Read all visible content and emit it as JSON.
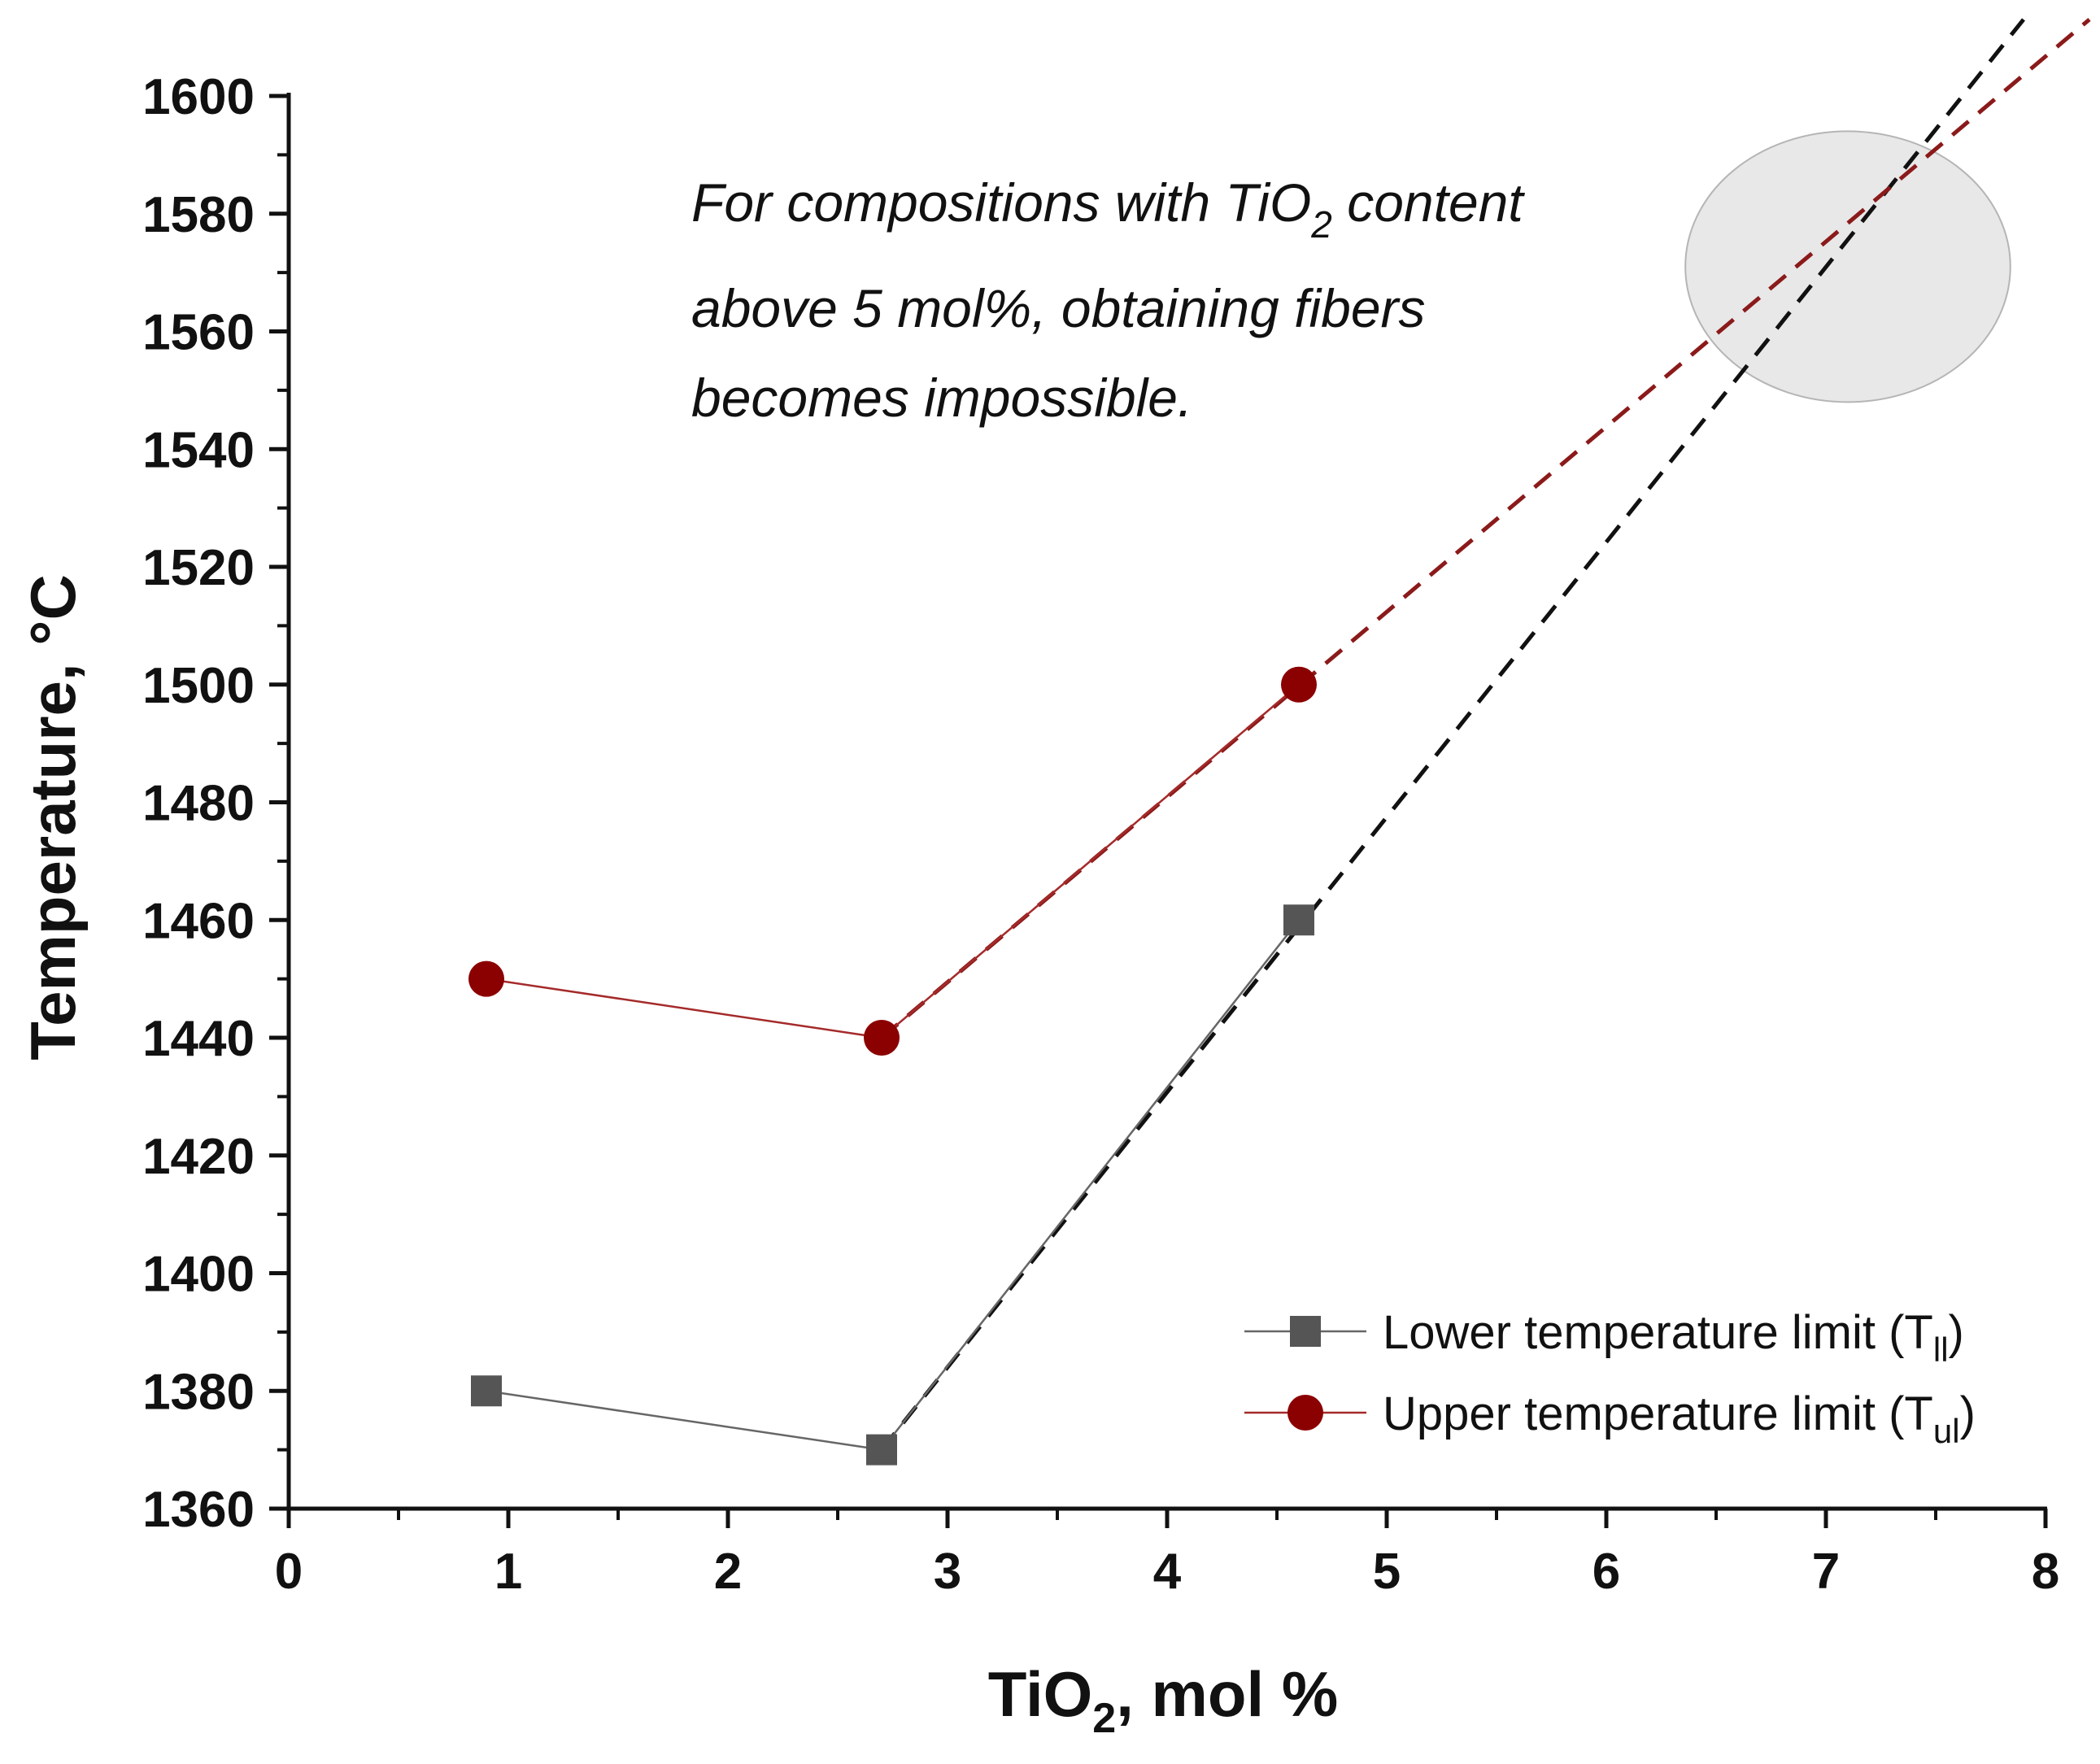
{
  "chart_data": {
    "type": "line",
    "xlabel": {
      "base": "TiO",
      "sub": "2",
      "rest": ", mol %"
    },
    "ylabel": "Temperature, °C",
    "xlim": [
      0,
      8
    ],
    "ylim": [
      1360,
      1600
    ],
    "x_ticks": [
      0,
      1,
      2,
      3,
      4,
      5,
      6,
      7,
      8
    ],
    "x_tick_labels": [
      "0",
      "1",
      "2",
      "3",
      "4",
      "5",
      "6",
      "7",
      "8"
    ],
    "y_ticks": [
      1360,
      1380,
      1400,
      1420,
      1440,
      1460,
      1480,
      1500,
      1520,
      1540,
      1560,
      1580,
      1600
    ],
    "y_tick_labels": [
      "1360",
      "1380",
      "1400",
      "1420",
      "1440",
      "1460",
      "1480",
      "1500",
      "1520",
      "1540",
      "1560",
      "1580",
      "1600"
    ],
    "grid": false,
    "legend_position": "bottom-right",
    "series": [
      {
        "name_base": "Lower temperature limit (T",
        "name_sub": "ll",
        "name_end": ")",
        "marker": "square",
        "color": "#555555",
        "line_color": "#666666",
        "x": [
          0.9,
          2.7,
          4.6
        ],
        "y": [
          1380,
          1370,
          1460
        ]
      },
      {
        "name_base": "Upper temperature limit (T",
        "name_sub": "ul",
        "name_end": ")",
        "marker": "circle",
        "color": "#8b0000",
        "line_color": "#a52a2a",
        "x": [
          0.9,
          2.7,
          4.6
        ],
        "y": [
          1450,
          1440,
          1500
        ]
      }
    ],
    "trend_lines": [
      {
        "series": "lower",
        "style": "dashed",
        "color": "#111111",
        "from": [
          2.7,
          1370
        ],
        "to": [
          7.9,
          1613
        ]
      },
      {
        "series": "upper",
        "style": "dashed",
        "color": "#8b1a1a",
        "from": [
          2.7,
          1440
        ],
        "to": [
          8.2,
          1613
        ]
      }
    ],
    "highlight_ellipse": {
      "cx": 7.1,
      "cy": 1571,
      "rx": 0.74,
      "ry": 23,
      "color": "#e8e8e8"
    },
    "annotation": {
      "line1_pre": "For compositions with TiO",
      "line1_sub": "2",
      "line1_post": " content",
      "line2": "above 5 mol%, obtaining fibers",
      "line3": "becomes impossible."
    }
  }
}
